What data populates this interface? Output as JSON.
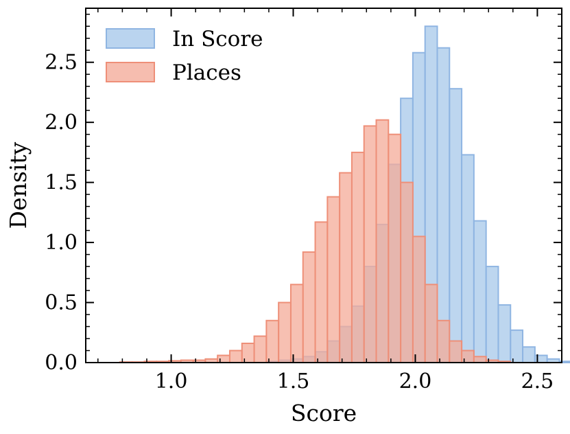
{
  "chart_data": {
    "type": "histogram",
    "xlabel": "Score",
    "ylabel": "Density",
    "xlim": [
      0.65,
      2.6
    ],
    "ylim": [
      0.0,
      2.95
    ],
    "xticks": [
      1.0,
      1.5,
      2.0,
      2.5
    ],
    "xtick_labels": [
      "1.0",
      "1.5",
      "2.0",
      "2.5"
    ],
    "yticks": [
      0.0,
      0.5,
      1.0,
      1.5,
      2.0,
      2.5
    ],
    "ytick_labels": [
      "0.0",
      "0.5",
      "1.0",
      "1.5",
      "2.0",
      "2.5"
    ],
    "grid": false,
    "legend_position": "top-left",
    "bin_start": 0.69,
    "bin_width": 0.05,
    "series": [
      {
        "name": "In Score",
        "fill": "#a7c8ea",
        "edge": "#8fb5e2",
        "values": [
          0,
          0,
          0,
          0,
          0,
          0,
          0,
          0,
          0,
          0,
          0,
          0,
          0,
          0,
          0.01,
          0.02,
          0.03,
          0.05,
          0.09,
          0.18,
          0.3,
          0.47,
          0.8,
          1.15,
          1.65,
          2.2,
          2.58,
          2.8,
          2.62,
          2.28,
          1.73,
          1.18,
          0.8,
          0.48,
          0.27,
          0.13,
          0.06,
          0.03,
          0.01,
          0.005,
          0
        ]
      },
      {
        "name": "Places",
        "fill": "#f4ab98",
        "edge": "#ee8f78",
        "values": [
          0,
          0,
          0.005,
          0.005,
          0.01,
          0.01,
          0.015,
          0.02,
          0.02,
          0.03,
          0.06,
          0.1,
          0.16,
          0.22,
          0.35,
          0.5,
          0.65,
          0.92,
          1.17,
          1.38,
          1.58,
          1.75,
          1.97,
          2.02,
          1.9,
          1.5,
          1.05,
          0.65,
          0.35,
          0.18,
          0.1,
          0.05,
          0.02,
          0.01,
          0,
          0,
          0,
          0,
          0,
          0,
          0
        ]
      }
    ]
  }
}
